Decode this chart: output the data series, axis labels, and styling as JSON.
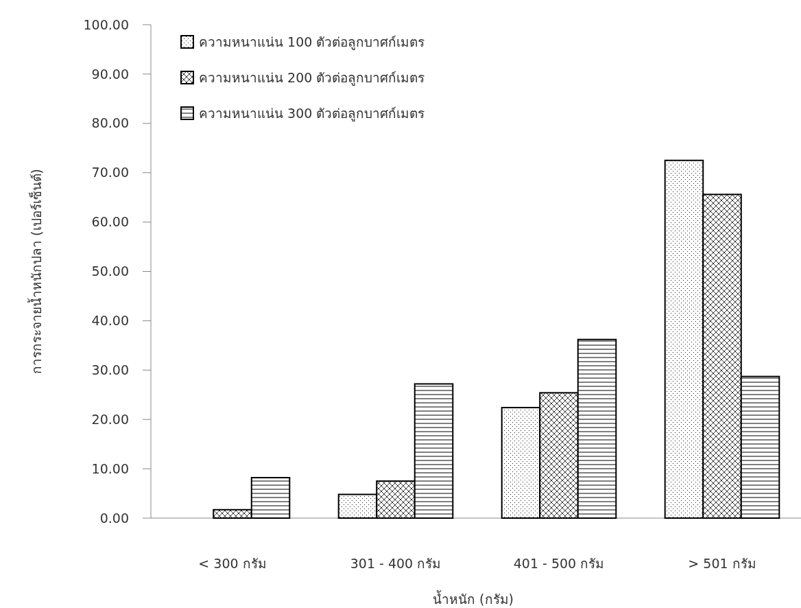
{
  "chart_data": {
    "type": "bar",
    "xlabel": "น้ำหนัก (กรัม)",
    "ylabel": "การกระจายน้ำหนักปลา (เปอร์เซ็นต์)",
    "categories": [
      "< 300 กรัม",
      "301 - 400 กรัม",
      "401 - 500 กรัม",
      "> 501 กรัม"
    ],
    "series": [
      {
        "name": "ความหนาแน่น 100 ตัวต่อลูกบาศก์เมตร",
        "color": "#000000",
        "values": [
          0,
          4.8,
          22.4,
          72.5
        ]
      },
      {
        "name": "ความหนาแน่น 200 ตัวต่อลูกบาศก์เมตร",
        "color": "#000000",
        "values": [
          1.7,
          7.5,
          25.4,
          65.6
        ]
      },
      {
        "name": "ความหนาแน่น 300 ตัวต่อลูกบาศก์เมตร",
        "color": "#000000",
        "values": [
          8.2,
          27.2,
          36.2,
          28.7
        ]
      }
    ],
    "ylim": [
      0,
      100
    ],
    "yticks": [
      {
        "value": 0,
        "label": "0.00"
      },
      {
        "value": 10,
        "label": "10.00"
      },
      {
        "value": 20,
        "label": "20.00"
      },
      {
        "value": 30,
        "label": "30.00"
      },
      {
        "value": 40,
        "label": "40.00"
      },
      {
        "value": 50,
        "label": "50.00"
      },
      {
        "value": 60,
        "label": "60.00"
      },
      {
        "value": 70,
        "label": "70.00"
      },
      {
        "value": 80,
        "label": "80.00"
      },
      {
        "value": 90,
        "label": "90.00"
      },
      {
        "value": 100,
        "label": "100.00"
      }
    ],
    "legend": "top left",
    "grid": false
  }
}
